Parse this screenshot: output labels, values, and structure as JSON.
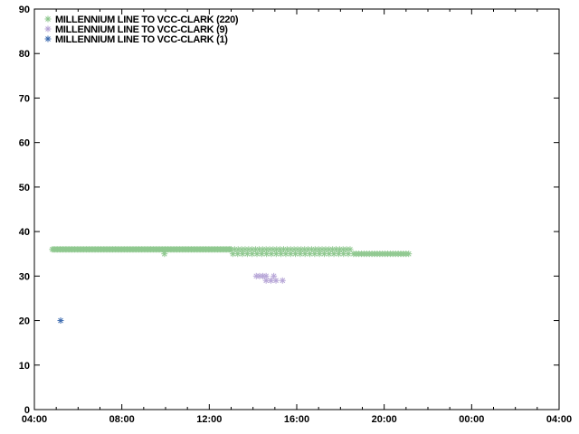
{
  "window": {
    "background": "#ffffff",
    "axis_color": "#000000"
  },
  "chart_data": {
    "type": "scatter",
    "marker": "asterisk",
    "title": "",
    "xlabel": "",
    "ylabel": "",
    "grid": false,
    "legend_position": "top-left-inside",
    "x_axis": {
      "unit": "time-of-day",
      "start_hour": 4,
      "end_hour": 28,
      "major_tick_hours": 4,
      "minor_tick_hours": 1,
      "tick_labels": [
        "04:00",
        "08:00",
        "12:00",
        "16:00",
        "20:00",
        "00:00",
        "04:00"
      ]
    },
    "y_axis": {
      "min": 0,
      "max": 90,
      "major_tick": 10,
      "tick_labels": [
        "0",
        "10",
        "20",
        "30",
        "40",
        "50",
        "60",
        "70",
        "80",
        "90"
      ]
    },
    "series": [
      {
        "name": "MILLENNIUM LINE TO VCC-CLARK (220)",
        "color": "#8fc88f",
        "point_count": 220,
        "runs": [
          {
            "value": 36,
            "t_start": 4.82,
            "t_end": 12.98,
            "step": 0.06
          },
          {
            "value": 36,
            "t_start": 13.0,
            "t_end": 18.55,
            "step": 0.16
          },
          {
            "value": 35,
            "t_start": 13.08,
            "t_end": 18.45,
            "step": 0.22
          },
          {
            "value": 35,
            "t_start": 18.6,
            "t_end": 21.15,
            "step": 0.12
          }
        ],
        "extra_points": [
          [
            9.95,
            35
          ]
        ]
      },
      {
        "name": "MILLENNIUM LINE TO VCC-CLARK (9)",
        "color": "#b7a6d7",
        "point_count": 9,
        "points": [
          [
            14.15,
            30
          ],
          [
            14.3,
            30
          ],
          [
            14.45,
            30
          ],
          [
            14.6,
            30
          ],
          [
            14.95,
            30
          ],
          [
            14.6,
            29
          ],
          [
            14.82,
            29
          ],
          [
            15.05,
            29
          ],
          [
            15.35,
            29
          ]
        ]
      },
      {
        "name": "MILLENNIUM LINE TO VCC-CLARK (1)",
        "color": "#3e6cb0",
        "point_count": 1,
        "points": [
          [
            5.2,
            20
          ]
        ]
      }
    ]
  }
}
